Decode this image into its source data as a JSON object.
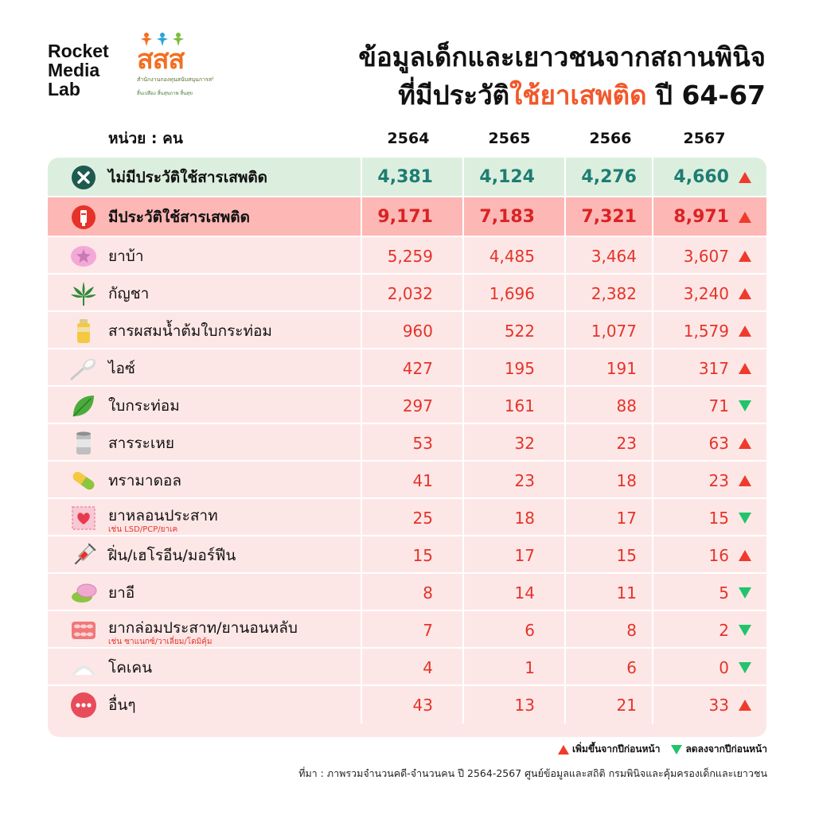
{
  "brand": {
    "line1": "Rocket",
    "line2": "Media",
    "line3": "Lab"
  },
  "sss": {
    "mark": "สสส",
    "subtitle": "สำนักงานกองทุนสนับสนุนการสร้างเสริมสุขภาพ",
    "tagline": "สิ้นเปลือง สิ้นสุขภาพ สิ้นสุข"
  },
  "title": {
    "line1": "ข้อมูลเด็กและเยาวชนจากสถานพินิจ",
    "line2_prefix": "ที่มีประวัติ",
    "line2_accent": "ใช้ยาเสพติด",
    "line2_suffix": " ปี 64-67"
  },
  "header": {
    "unit": "หน่วย : คน",
    "years": [
      "2564",
      "2565",
      "2566",
      "2567"
    ]
  },
  "colors": {
    "up": "#ef3b2c",
    "down": "#21c46c",
    "accent": "#f2582a",
    "teal": "#1e7d72",
    "number": "#e5332a",
    "green_row": "#dcefdf",
    "red_row": "#fdb7b5",
    "pink_bg": "#fde7e6"
  },
  "rows": [
    {
      "icon": "x-circle-icon",
      "label": "ไม่มีประวัติใช้สารเสพติด",
      "sub": "",
      "values": [
        "4,381",
        "4,124",
        "4,276",
        "4,660"
      ],
      "trend": "up",
      "style": "green"
    },
    {
      "icon": "syringe-badge-icon",
      "label": "มีประวัติใช้สารเสพติด",
      "sub": "",
      "values": [
        "9,171",
        "7,183",
        "7,321",
        "8,971"
      ],
      "trend": "up",
      "style": "red"
    },
    {
      "icon": "pill-star-icon",
      "label": "ยาบ้า",
      "sub": "",
      "values": [
        "5,259",
        "4,485",
        "3,464",
        "3,607"
      ],
      "trend": "up",
      "style": "normal"
    },
    {
      "icon": "cannabis-leaf-icon",
      "label": "กัญชา",
      "sub": "",
      "values": [
        "2,032",
        "1,696",
        "2,382",
        "3,240"
      ],
      "trend": "up",
      "style": "normal"
    },
    {
      "icon": "bottle-icon",
      "label": "สารผสมน้ำต้มใบกระท่อม",
      "sub": "",
      "values": [
        "960",
        "522",
        "1,077",
        "1,579"
      ],
      "trend": "up",
      "style": "normal"
    },
    {
      "icon": "spoon-powder-icon",
      "label": "ไอซ์",
      "sub": "",
      "values": [
        "427",
        "195",
        "191",
        "317"
      ],
      "trend": "up",
      "style": "normal"
    },
    {
      "icon": "kratom-leaf-icon",
      "label": "ใบกระท่อม",
      "sub": "",
      "values": [
        "297",
        "161",
        "88",
        "71"
      ],
      "trend": "down",
      "style": "normal"
    },
    {
      "icon": "can-icon",
      "label": "สารระเหย",
      "sub": "",
      "values": [
        "53",
        "32",
        "23",
        "63"
      ],
      "trend": "up",
      "style": "normal"
    },
    {
      "icon": "capsule-icon",
      "label": "ทรามาดอล",
      "sub": "",
      "values": [
        "41",
        "23",
        "18",
        "23"
      ],
      "trend": "up",
      "style": "normal"
    },
    {
      "icon": "stamp-heart-icon",
      "label": "ยาหลอนประสาท",
      "sub": "เช่น LSD/PCP/ยาเค",
      "values": [
        "25",
        "18",
        "17",
        "15"
      ],
      "trend": "down",
      "style": "normal"
    },
    {
      "icon": "syringe-icon",
      "label": "ฝิ่น/เฮโรอีน/มอร์ฟีน",
      "sub": "",
      "values": [
        "15",
        "17",
        "15",
        "16"
      ],
      "trend": "up",
      "style": "normal"
    },
    {
      "icon": "ecstasy-pill-icon",
      "label": "ยาอี",
      "sub": "",
      "values": [
        "8",
        "14",
        "11",
        "5"
      ],
      "trend": "down",
      "style": "normal"
    },
    {
      "icon": "blister-pack-icon",
      "label": "ยากล่อมประสาท/ยานอนหลับ",
      "sub": "เช่น ซาแนกซ์/วาเลี่ยม/โดมิคุ้ม",
      "values": [
        "7",
        "6",
        "8",
        "2"
      ],
      "trend": "down",
      "style": "normal"
    },
    {
      "icon": "powder-pile-icon",
      "label": "โคเคน",
      "sub": "",
      "values": [
        "4",
        "1",
        "6",
        "0"
      ],
      "trend": "down",
      "style": "normal"
    },
    {
      "icon": "more-dots-icon",
      "label": "อื่นๆ",
      "sub": "",
      "values": [
        "43",
        "13",
        "21",
        "33"
      ],
      "trend": "up",
      "style": "normal"
    }
  ],
  "legend": {
    "up": "เพิ่มขึ้นจากปีก่อนหน้า",
    "down": "ลดลงจากปีก่อนหน้า"
  },
  "source": "ที่มา : ภาพรวมจำนวนคดี-จำนวนคน ปี 2564-2567 ศูนย์ข้อมูลและสถิติ กรมพินิจและคุ้มครองเด็กและเยาวชน"
}
